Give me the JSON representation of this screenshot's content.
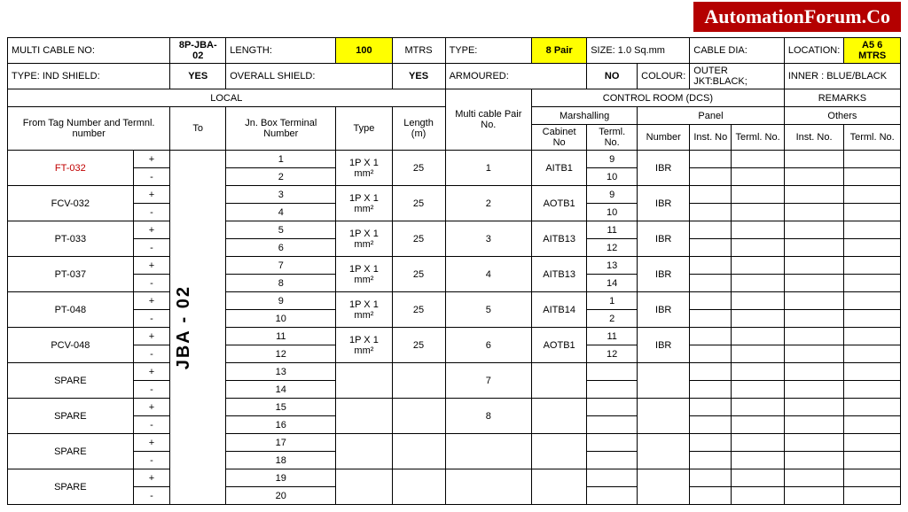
{
  "banner": "AutomationForum.Co",
  "header": {
    "multiCableNoLabel": "MULTI CABLE NO:",
    "multiCableNo": "8P-JBA-02",
    "lengthLabel": "LENGTH:",
    "length": "100",
    "lengthUnit": "MTRS",
    "typeLabel": "TYPE:",
    "type": "8 Pair",
    "sizeLabel": "SIZE: 1.0 Sq.mm",
    "cableDiaLabel": "CABLE DIA:",
    "cableDia": "",
    "locationLabel": "LOCATION:",
    "location": "A5 6 MTRS",
    "typeIndShieldLabel": "TYPE: IND SHIELD:",
    "typeIndShield": "YES",
    "overallShieldLabel": "OVERALL SHIELD:",
    "overallShield": "YES",
    "armouredLabel": "ARMOURED:",
    "armoured": "NO",
    "colourLabel": "COLOUR:",
    "outerJkt": "OUTER JKT:BLACK;",
    "inner": "INNER : BLUE/BLACK"
  },
  "sections": {
    "local": "LOCAL",
    "controlRoom": "CONTROL ROOM (DCS)",
    "remarks": "REMARKS",
    "fromTag": "From Tag Number and Termnl. number",
    "to": "To",
    "jnBox": "Jn. Box Terminal Number",
    "type": "Type",
    "lengthM": "Length (m)",
    "multiCablePair": "Multi cable Pair No.",
    "marshalling": "Marshalling",
    "panel": "Panel",
    "others": "Others",
    "cabinetNo": "Cabinet No",
    "termlNo": "Terml. No.",
    "number": "Number",
    "instNo": "Inst. No",
    "instNo2": "Inst. No.",
    "termlNo2": "Terml. No."
  },
  "toValue": "JBA - 02",
  "rows": [
    {
      "tag": "FT-032",
      "red": true,
      "pol": [
        "+",
        "-"
      ],
      "jn": [
        "1",
        "2"
      ],
      "type": "1P X 1 mm²",
      "len": "25",
      "pair": "1",
      "cab": "AITB1",
      "term": [
        "9",
        "10"
      ],
      "num": "IBR"
    },
    {
      "tag": "FCV-032",
      "red": false,
      "pol": [
        "+",
        "-"
      ],
      "jn": [
        "3",
        "4"
      ],
      "type": "1P X 1 mm²",
      "len": "25",
      "pair": "2",
      "cab": "AOTB1",
      "term": [
        "9",
        "10"
      ],
      "num": "IBR"
    },
    {
      "tag": "PT-033",
      "red": false,
      "pol": [
        "+",
        "-"
      ],
      "jn": [
        "5",
        "6"
      ],
      "type": "1P X 1 mm²",
      "len": "25",
      "pair": "3",
      "cab": "AITB13",
      "term": [
        "11",
        "12"
      ],
      "num": "IBR"
    },
    {
      "tag": "PT-037",
      "red": false,
      "pol": [
        "+",
        "-"
      ],
      "jn": [
        "7",
        "8"
      ],
      "type": "1P X 1 mm²",
      "len": "25",
      "pair": "4",
      "cab": "AITB13",
      "term": [
        "13",
        "14"
      ],
      "num": "IBR"
    },
    {
      "tag": "PT-048",
      "red": false,
      "pol": [
        "+",
        "-"
      ],
      "jn": [
        "9",
        "10"
      ],
      "type": "1P X 1 mm²",
      "len": "25",
      "pair": "5",
      "cab": "AITB14",
      "term": [
        "1",
        "2"
      ],
      "num": "IBR"
    },
    {
      "tag": "PCV-048",
      "red": false,
      "pol": [
        "+",
        "-"
      ],
      "jn": [
        "11",
        "12"
      ],
      "type": "1P X 1 mm²",
      "len": "25",
      "pair": "6",
      "cab": "AOTB1",
      "term": [
        "11",
        "12"
      ],
      "num": "IBR"
    },
    {
      "tag": "SPARE",
      "red": false,
      "pol": [
        "+",
        "-"
      ],
      "jn": [
        "13",
        "14"
      ],
      "type": "",
      "len": "",
      "pair": "7",
      "cab": "",
      "term": [
        "",
        ""
      ],
      "num": ""
    },
    {
      "tag": "SPARE",
      "red": false,
      "pol": [
        "+",
        "-"
      ],
      "jn": [
        "15",
        "16"
      ],
      "type": "",
      "len": "",
      "pair": "8",
      "cab": "",
      "term": [
        "",
        ""
      ],
      "num": ""
    },
    {
      "tag": "SPARE",
      "red": false,
      "pol": [
        "+",
        "-"
      ],
      "jn": [
        "17",
        "18"
      ],
      "type": "",
      "len": "",
      "pair": "",
      "cab": "",
      "term": [
        "",
        ""
      ],
      "num": ""
    },
    {
      "tag": "SPARE",
      "red": false,
      "pol": [
        "+",
        "-"
      ],
      "jn": [
        "19",
        "20"
      ],
      "type": "",
      "len": "",
      "pair": "",
      "cab": "",
      "term": [
        "",
        ""
      ],
      "num": ""
    }
  ]
}
